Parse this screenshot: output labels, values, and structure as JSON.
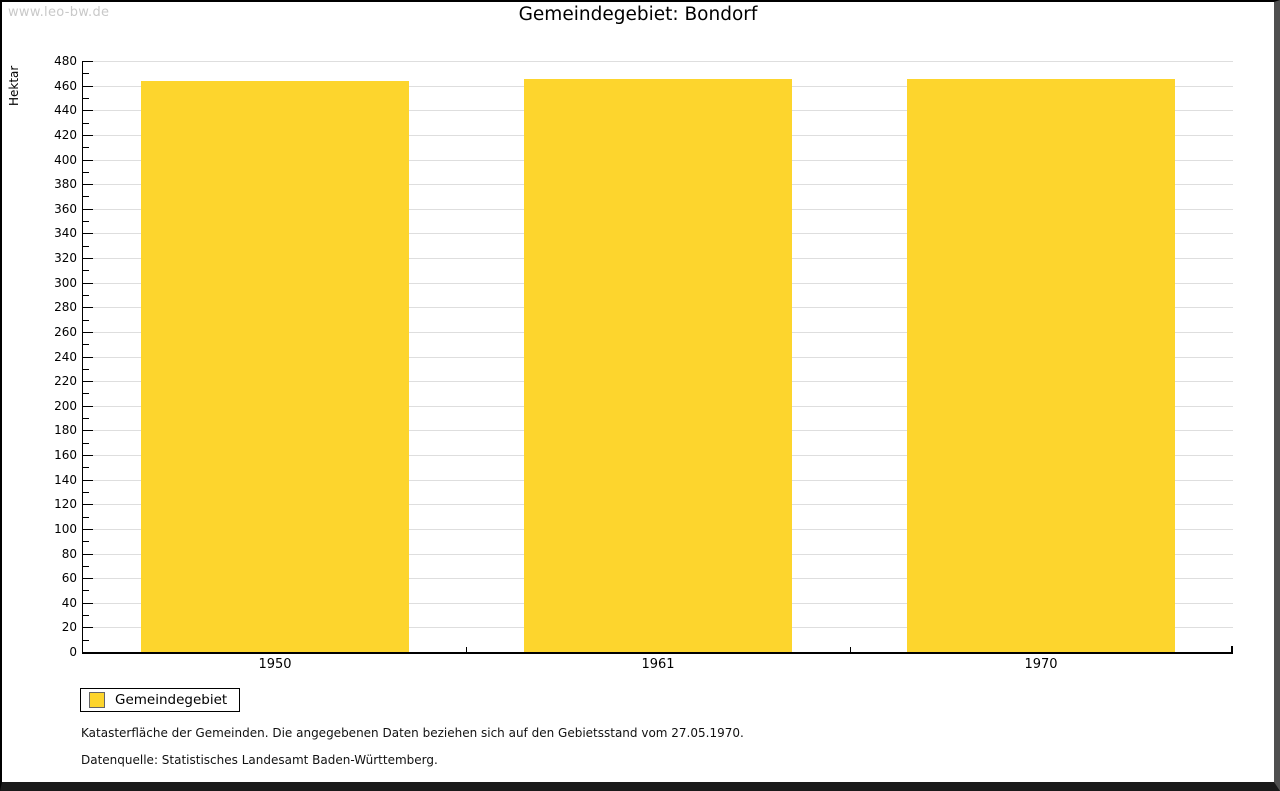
{
  "watermark": "www.leo-bw.de",
  "title": "Gemeindegebiet: Bondorf",
  "chart_data": {
    "type": "bar",
    "title": "Gemeindegebiet: Bondorf",
    "xlabel": "",
    "ylabel": "Hektar",
    "categories": [
      "1950",
      "1961",
      "1970"
    ],
    "series": [
      {
        "name": "Gemeindegebiet",
        "values": [
          464,
          465,
          465
        ]
      }
    ],
    "ylim": [
      0,
      480
    ],
    "ytick_step": 20,
    "yminor_tick_step": 10,
    "grid": true,
    "legend_position": "bottom-left"
  },
  "legend": {
    "items": [
      {
        "label": "Gemeindegebiet",
        "color": "#FDD52D"
      }
    ]
  },
  "footer": {
    "line1": "Katasterfläche der Gemeinden. Die angegebenen Daten beziehen sich auf den Gebietsstand vom 27.05.1970.",
    "line2": "Datenquelle: Statistisches Landesamt Baden-Württemberg."
  },
  "colors": {
    "bar": "#FDD52D",
    "grid": "#DEDEDE",
    "axis": "#000000",
    "watermark": "#C9C9C9"
  }
}
